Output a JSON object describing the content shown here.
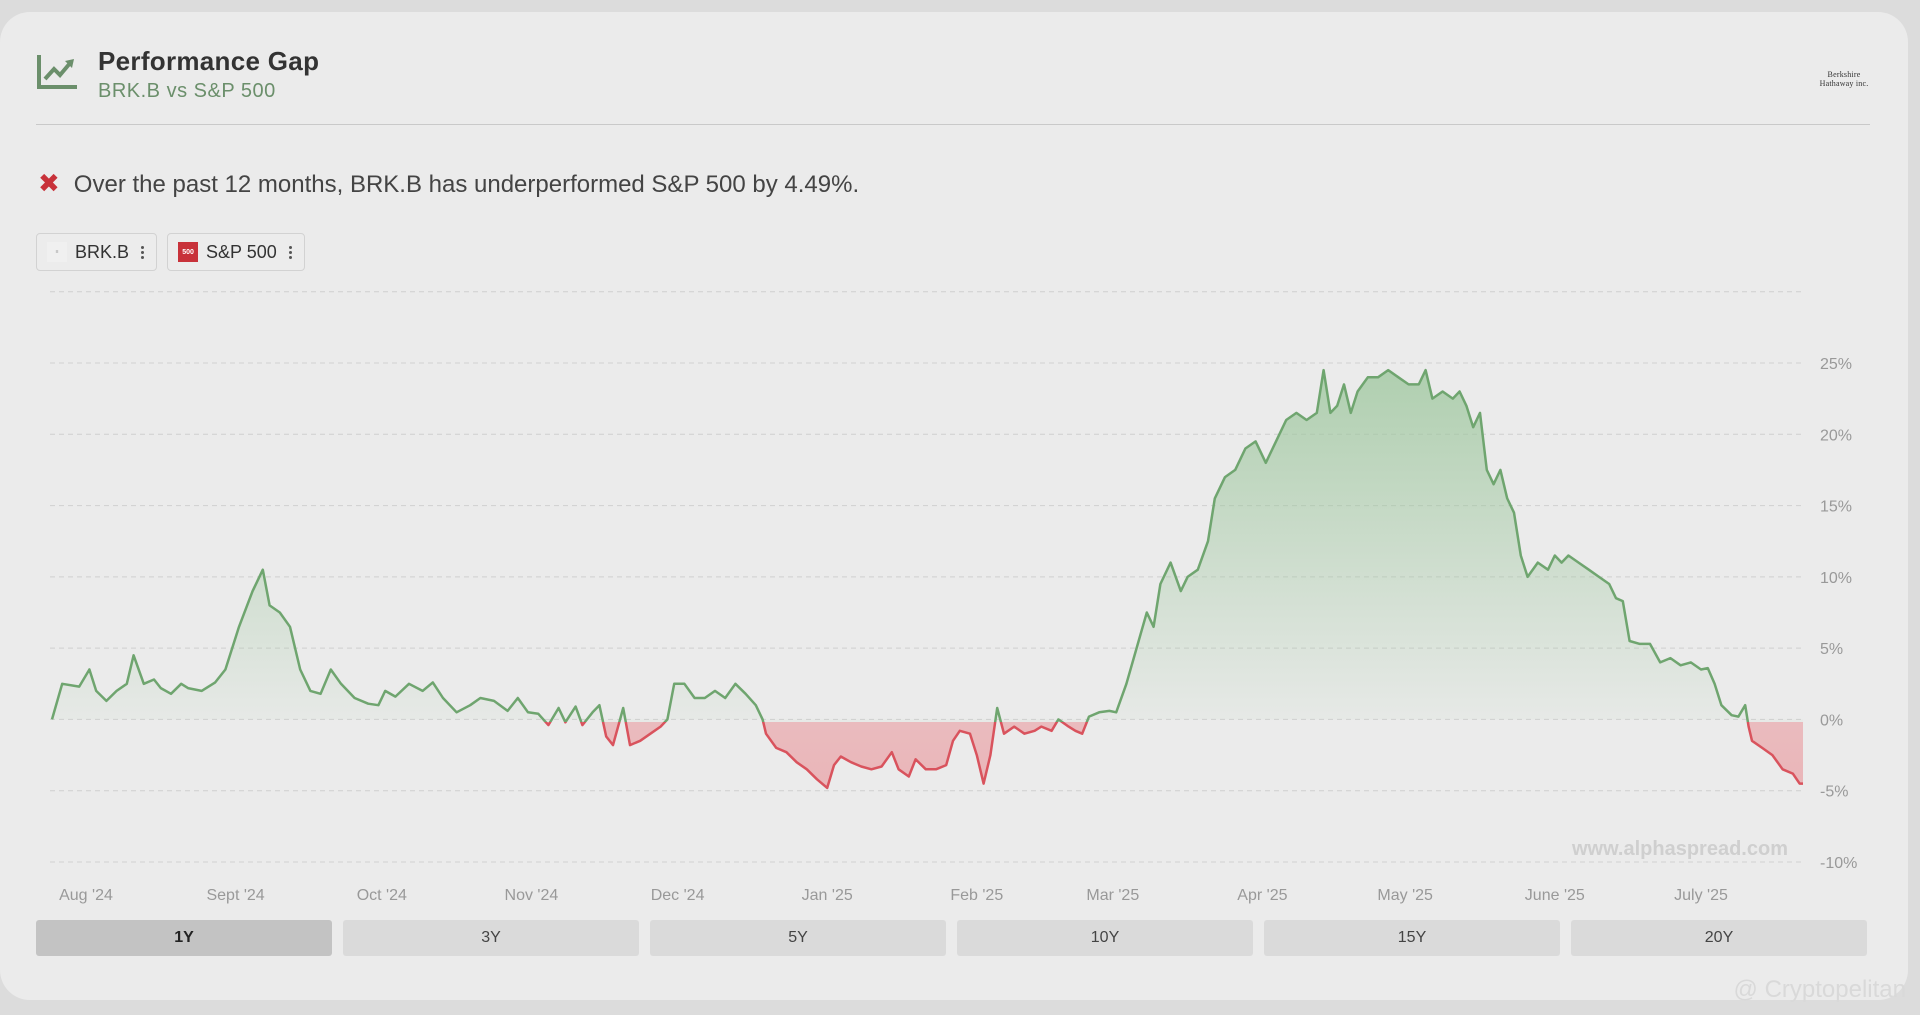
{
  "header": {
    "title": "Performance Gap",
    "subtitle": "BRK.B vs S&P 500",
    "logo_line1": "Berkshire",
    "logo_line2": "Hathaway inc."
  },
  "summary": {
    "icon": "cross-icon",
    "text": "Over the past 12 months, BRK.B has underperformed S&P 500 by 4.49%."
  },
  "legend": {
    "items": [
      {
        "label": "BRK.B",
        "icon": "berkshire-logo-icon"
      },
      {
        "label": "S&P 500",
        "icon": "sp500-logo-icon",
        "badge": "500"
      }
    ]
  },
  "watermark": "www.alphaspread.com",
  "tabs": [
    "1Y",
    "3Y",
    "5Y",
    "10Y",
    "15Y",
    "20Y"
  ],
  "active_tab": "1Y",
  "credit": "@ Cryptopelitan",
  "colors": {
    "positive_line": "#6fa56f",
    "negative_line": "#d9535d",
    "positive_fill": "#9cc69c",
    "negative_fill": "#e9a7ab",
    "accent_red": "#c8323a"
  },
  "chart_data": {
    "type": "area",
    "ylim": [
      -10,
      25
    ],
    "yticks": [
      25,
      20,
      15,
      10,
      5,
      0,
      -5,
      -10
    ],
    "ytick_labels": [
      "25%",
      "20%",
      "15%",
      "10%",
      "5%",
      "0%",
      "-5%",
      "-10%"
    ],
    "xlim": [
      0,
      51.5
    ],
    "month_ticks": [
      {
        "label": "Aug '24",
        "x": 1
      },
      {
        "label": "Sept '24",
        "x": 5.4
      },
      {
        "label": "Oct '24",
        "x": 9.7
      },
      {
        "label": "Nov '24",
        "x": 14.1
      },
      {
        "label": "Dec '24",
        "x": 18.4
      },
      {
        "label": "Jan '25",
        "x": 22.8
      },
      {
        "label": "Feb '25",
        "x": 27.2
      },
      {
        "label": "Mar '25",
        "x": 31.2
      },
      {
        "label": "Apr '25",
        "x": 35.6
      },
      {
        "label": "May '25",
        "x": 39.8
      },
      {
        "label": "June '25",
        "x": 44.2
      },
      {
        "label": "July '25",
        "x": 48.5
      }
    ],
    "series": [
      {
        "points": [
          [
            0,
            0
          ],
          [
            0.3,
            2.5
          ],
          [
            0.8,
            2.3
          ],
          [
            1.1,
            3.5
          ],
          [
            1.3,
            2.0
          ],
          [
            1.6,
            1.3
          ],
          [
            1.9,
            2.0
          ],
          [
            2.2,
            2.5
          ],
          [
            2.4,
            4.5
          ],
          [
            2.7,
            2.5
          ],
          [
            3.0,
            2.8
          ],
          [
            3.2,
            2.2
          ],
          [
            3.5,
            1.8
          ],
          [
            3.8,
            2.5
          ],
          [
            4.0,
            2.2
          ],
          [
            4.4,
            2.0
          ],
          [
            4.8,
            2.6
          ],
          [
            5.1,
            3.5
          ],
          [
            5.5,
            6.5
          ],
          [
            5.9,
            9.0
          ],
          [
            6.2,
            10.5
          ],
          [
            6.4,
            8.0
          ],
          [
            6.7,
            7.5
          ],
          [
            7.0,
            6.5
          ],
          [
            7.3,
            3.5
          ],
          [
            7.6,
            2.0
          ],
          [
            7.9,
            1.8
          ],
          [
            8.2,
            3.5
          ],
          [
            8.5,
            2.5
          ],
          [
            8.9,
            1.5
          ],
          [
            9.3,
            1.1
          ],
          [
            9.6,
            1.0
          ],
          [
            9.8,
            2.0
          ],
          [
            10.1,
            1.6
          ],
          [
            10.5,
            2.5
          ],
          [
            10.9,
            2.0
          ],
          [
            11.2,
            2.6
          ],
          [
            11.5,
            1.5
          ],
          [
            11.9,
            0.5
          ],
          [
            12.3,
            1.0
          ],
          [
            12.6,
            1.5
          ],
          [
            13.0,
            1.3
          ],
          [
            13.4,
            0.6
          ],
          [
            13.7,
            1.5
          ],
          [
            14.0,
            0.5
          ],
          [
            14.3,
            0.4
          ],
          [
            14.6,
            -0.4
          ],
          [
            14.9,
            0.8
          ],
          [
            15.1,
            -0.2
          ],
          [
            15.4,
            0.9
          ],
          [
            15.6,
            -0.4
          ],
          [
            15.9,
            0.5
          ],
          [
            16.1,
            1.0
          ],
          [
            16.3,
            -1.2
          ],
          [
            16.5,
            -1.8
          ],
          [
            16.8,
            0.8
          ],
          [
            17.0,
            -1.8
          ],
          [
            17.3,
            -1.5
          ],
          [
            17.6,
            -1.0
          ],
          [
            17.9,
            -0.5
          ],
          [
            18.1,
            0.0
          ],
          [
            18.3,
            2.5
          ],
          [
            18.6,
            2.5
          ],
          [
            18.9,
            1.5
          ],
          [
            19.2,
            1.5
          ],
          [
            19.5,
            2.0
          ],
          [
            19.8,
            1.5
          ],
          [
            20.1,
            2.5
          ],
          [
            20.4,
            1.8
          ],
          [
            20.7,
            1.0
          ],
          [
            20.9,
            0.0
          ],
          [
            21.0,
            -1.0
          ],
          [
            21.3,
            -2.0
          ],
          [
            21.6,
            -2.3
          ],
          [
            21.9,
            -3.0
          ],
          [
            22.2,
            -3.5
          ],
          [
            22.5,
            -4.2
          ],
          [
            22.8,
            -4.8
          ],
          [
            23.0,
            -3.2
          ],
          [
            23.2,
            -2.6
          ],
          [
            23.5,
            -3.0
          ],
          [
            23.8,
            -3.3
          ],
          [
            24.1,
            -3.5
          ],
          [
            24.4,
            -3.3
          ],
          [
            24.7,
            -2.3
          ],
          [
            24.9,
            -3.5
          ],
          [
            25.2,
            -4.0
          ],
          [
            25.4,
            -2.8
          ],
          [
            25.7,
            -3.5
          ],
          [
            26.0,
            -3.5
          ],
          [
            26.3,
            -3.2
          ],
          [
            26.5,
            -1.5
          ],
          [
            26.7,
            -0.8
          ],
          [
            27.0,
            -1.0
          ],
          [
            27.2,
            -2.5
          ],
          [
            27.4,
            -4.5
          ],
          [
            27.6,
            -2.5
          ],
          [
            27.8,
            0.8
          ],
          [
            28.0,
            -1.0
          ],
          [
            28.3,
            -0.5
          ],
          [
            28.6,
            -1.0
          ],
          [
            28.9,
            -0.8
          ],
          [
            29.1,
            -0.5
          ],
          [
            29.4,
            -0.8
          ],
          [
            29.6,
            0.0
          ],
          [
            29.9,
            -0.5
          ],
          [
            30.1,
            -0.8
          ],
          [
            30.3,
            -1.0
          ],
          [
            30.5,
            0.2
          ],
          [
            30.8,
            0.5
          ],
          [
            31.1,
            0.6
          ],
          [
            31.3,
            0.5
          ],
          [
            31.6,
            2.5
          ],
          [
            31.9,
            5.0
          ],
          [
            32.2,
            7.5
          ],
          [
            32.4,
            6.5
          ],
          [
            32.6,
            9.5
          ],
          [
            32.9,
            11.0
          ],
          [
            33.2,
            9.0
          ],
          [
            33.4,
            10.0
          ],
          [
            33.7,
            10.5
          ],
          [
            34.0,
            12.5
          ],
          [
            34.2,
            15.5
          ],
          [
            34.5,
            17.0
          ],
          [
            34.8,
            17.5
          ],
          [
            35.1,
            19.0
          ],
          [
            35.4,
            19.5
          ],
          [
            35.7,
            18.0
          ],
          [
            36.0,
            19.5
          ],
          [
            36.3,
            21.0
          ],
          [
            36.6,
            21.5
          ],
          [
            36.9,
            21.0
          ],
          [
            37.2,
            21.5
          ],
          [
            37.4,
            24.5
          ],
          [
            37.6,
            21.5
          ],
          [
            37.8,
            22.0
          ],
          [
            38.0,
            23.5
          ],
          [
            38.2,
            21.5
          ],
          [
            38.4,
            23.0
          ],
          [
            38.7,
            24.0
          ],
          [
            39.0,
            24.0
          ],
          [
            39.3,
            24.5
          ],
          [
            39.6,
            24.0
          ],
          [
            39.9,
            23.5
          ],
          [
            40.2,
            23.5
          ],
          [
            40.4,
            24.5
          ],
          [
            40.6,
            22.5
          ],
          [
            40.9,
            23.0
          ],
          [
            41.2,
            22.5
          ],
          [
            41.4,
            23.0
          ],
          [
            41.6,
            22.0
          ],
          [
            41.8,
            20.5
          ],
          [
            42.0,
            21.5
          ],
          [
            42.2,
            17.5
          ],
          [
            42.4,
            16.5
          ],
          [
            42.6,
            17.5
          ],
          [
            42.8,
            15.5
          ],
          [
            43.0,
            14.5
          ],
          [
            43.2,
            11.5
          ],
          [
            43.4,
            10.0
          ],
          [
            43.7,
            11.0
          ],
          [
            44.0,
            10.5
          ],
          [
            44.2,
            11.5
          ],
          [
            44.4,
            11.0
          ],
          [
            44.6,
            11.5
          ],
          [
            44.9,
            11.0
          ],
          [
            45.2,
            10.5
          ],
          [
            45.5,
            10.0
          ],
          [
            45.8,
            9.5
          ],
          [
            46.0,
            8.5
          ],
          [
            46.2,
            8.3
          ],
          [
            46.4,
            5.5
          ],
          [
            46.7,
            5.3
          ],
          [
            47.0,
            5.3
          ],
          [
            47.3,
            4.0
          ],
          [
            47.6,
            4.3
          ],
          [
            47.9,
            3.8
          ],
          [
            48.2,
            4.0
          ],
          [
            48.5,
            3.5
          ],
          [
            48.7,
            3.6
          ],
          [
            48.9,
            2.5
          ],
          [
            49.1,
            1.0
          ],
          [
            49.4,
            0.3
          ],
          [
            49.6,
            0.2
          ],
          [
            49.8,
            1.0
          ],
          [
            49.9,
            -0.5
          ],
          [
            50.0,
            -1.5
          ],
          [
            50.3,
            -2.0
          ],
          [
            50.6,
            -2.5
          ],
          [
            50.9,
            -3.5
          ],
          [
            51.2,
            -3.8
          ],
          [
            51.4,
            -4.5
          ],
          [
            51.5,
            -4.5
          ]
        ]
      }
    ]
  }
}
